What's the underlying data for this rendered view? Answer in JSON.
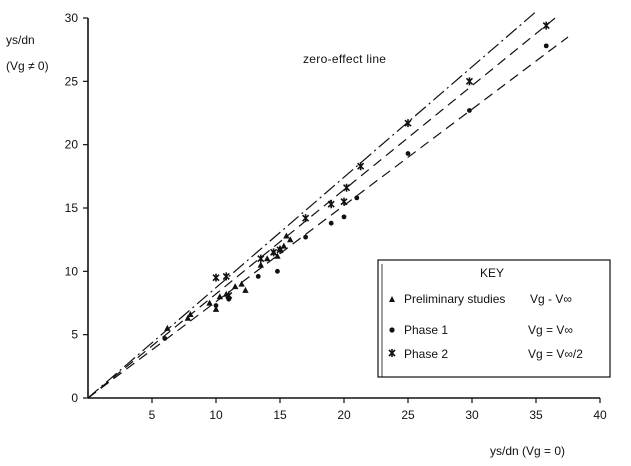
{
  "chart_data": {
    "type": "scatter",
    "title": "",
    "xlabel": "ys/dn (Vg = 0)",
    "ylabel_line1": "ys/dn",
    "ylabel_line2": "(Vg ≠ 0)",
    "xlim": [
      0,
      40
    ],
    "ylim": [
      0,
      30
    ],
    "xticks": [
      5,
      10,
      15,
      20,
      25,
      30,
      35,
      40
    ],
    "yticks": [
      0,
      5,
      10,
      15,
      20,
      25,
      30
    ],
    "grid": false,
    "legend_placement": "lower-right",
    "legend_title": "KEY",
    "annotation": "zero-effect line",
    "lines": [
      {
        "style": "dash-dot",
        "x": [
          0,
          35
        ],
        "y": [
          0,
          30.5
        ],
        "label": "zero-effect line"
      },
      {
        "style": "dashed",
        "x": [
          0,
          36.5
        ],
        "y": [
          0,
          30
        ]
      },
      {
        "style": "dashed",
        "x": [
          0,
          37.5
        ],
        "y": [
          0,
          28.5
        ]
      }
    ],
    "series": [
      {
        "name": "Preliminary studies",
        "condition": "Vg - V∞",
        "marker": "triangle",
        "x": [
          6.2,
          7.8,
          8.0,
          9.5,
          10.0,
          10.3,
          10.8,
          11.5,
          12.0,
          12.3,
          13.5,
          14.0,
          14.5,
          14.8,
          15.0,
          15.5,
          15.3,
          15.8
        ],
        "y": [
          5.5,
          6.3,
          6.6,
          7.5,
          7.0,
          8.0,
          8.2,
          8.8,
          9.0,
          8.5,
          10.5,
          11.0,
          11.5,
          11.2,
          11.8,
          12.8,
          12.0,
          12.5
        ]
      },
      {
        "name": "Phase 1",
        "condition": "Vg = V∞",
        "marker": "dot",
        "x": [
          6.0,
          10.0,
          11.0,
          13.3,
          14.8,
          17.0,
          19.0,
          20.0,
          21.0,
          25.0,
          29.8,
          35.8
        ],
        "y": [
          4.7,
          7.3,
          7.8,
          9.6,
          10.0,
          12.7,
          13.8,
          14.3,
          15.8,
          19.3,
          22.7,
          27.8
        ]
      },
      {
        "name": "Phase 2",
        "condition": "Vg = V∞/2",
        "marker": "star",
        "x": [
          10.0,
          10.8,
          11.0,
          13.5,
          14.5,
          15.0,
          17.0,
          19.0,
          20.0,
          20.2,
          21.3,
          25.0,
          29.8,
          35.8
        ],
        "y": [
          9.5,
          9.6,
          8.1,
          11.0,
          11.5,
          11.7,
          14.2,
          15.3,
          15.5,
          16.6,
          18.3,
          21.7,
          25.0,
          29.4
        ]
      }
    ]
  }
}
